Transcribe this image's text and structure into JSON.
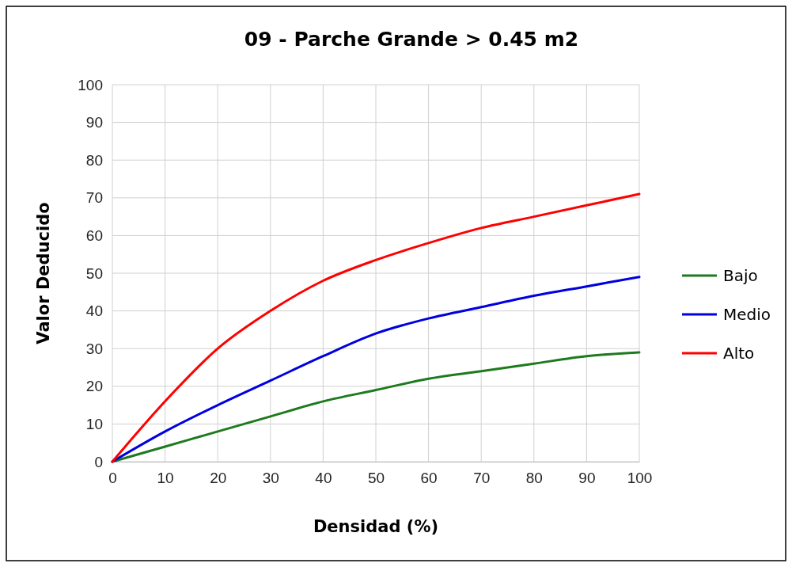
{
  "chart_data": {
    "type": "line",
    "title": "09 - Parche Grande > 0.45 m2",
    "xlabel": "Densidad (%)",
    "ylabel": "Valor Deducido",
    "x": [
      0,
      10,
      20,
      30,
      40,
      50,
      60,
      70,
      80,
      90,
      100
    ],
    "series": [
      {
        "name": "Bajo",
        "color": "#1e7a1e",
        "values": [
          0,
          4,
          8,
          12,
          16,
          19,
          22,
          24,
          26,
          28,
          29
        ]
      },
      {
        "name": "Medio",
        "color": "#0000e0",
        "values": [
          0,
          8,
          15,
          21.5,
          28,
          34,
          38,
          41,
          44,
          46.5,
          49
        ]
      },
      {
        "name": "Alto",
        "color": "#ff0000",
        "values": [
          0,
          16,
          30,
          40,
          48,
          53.5,
          58,
          62,
          65,
          68,
          71
        ]
      }
    ],
    "xlim": [
      0,
      100
    ],
    "xticks": [
      0,
      10,
      20,
      30,
      40,
      50,
      60,
      70,
      80,
      90,
      100
    ],
    "ylim": [
      0,
      100
    ],
    "yticks": [
      0,
      10,
      20,
      30,
      40,
      50,
      60,
      70,
      80,
      90,
      100
    ],
    "grid": true,
    "legend": "right",
    "marker": "none",
    "line_style": "solid"
  }
}
